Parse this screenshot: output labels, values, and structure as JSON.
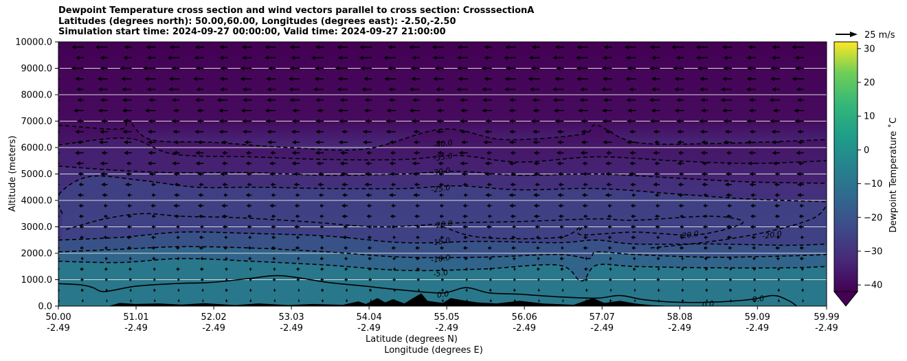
{
  "chart_data": {
    "type": "heatmap",
    "title_lines": [
      "Dewpoint Temperature cross section and wind vectors parallel to cross section: CrosssectionA",
      "Latitudes (degrees north): 50.00,60.00, Longitudes (degrees east): -2.50,-2.50",
      "Simulation start time: 2024-09-27 00:00:00, Valid time: 2024-09-27 21:00:00"
    ],
    "xlabel": "Latitude (degrees N)",
    "xlabel2": "Longitude (degrees E)",
    "ylabel": "Altitude (meters)",
    "xlim": [
      50.0,
      59.99
    ],
    "ylim": [
      0,
      10000
    ],
    "x_ticks": [
      {
        "lat": "50.00",
        "lon": "-2.49",
        "value": 50.0
      },
      {
        "lat": "51.01",
        "lon": "-2.49",
        "value": 51.01
      },
      {
        "lat": "52.02",
        "lon": "-2.49",
        "value": 52.02
      },
      {
        "lat": "53.03",
        "lon": "-2.49",
        "value": 53.03
      },
      {
        "lat": "54.04",
        "lon": "-2.49",
        "value": 54.04
      },
      {
        "lat": "55.05",
        "lon": "-2.49",
        "value": 55.05
      },
      {
        "lat": "56.06",
        "lon": "-2.49",
        "value": 56.06
      },
      {
        "lat": "57.07",
        "lon": "-2.49",
        "value": 57.07
      },
      {
        "lat": "58.08",
        "lon": "-2.49",
        "value": 58.08
      },
      {
        "lat": "59.09",
        "lon": "-2.49",
        "value": 59.09
      },
      {
        "lat": "59.99",
        "lon": "-2.49",
        "value": 59.99
      }
    ],
    "y_ticks": [
      {
        "label": "0.0",
        "value": 0
      },
      {
        "label": "1000.0",
        "value": 1000
      },
      {
        "label": "2000.0",
        "value": 2000
      },
      {
        "label": "3000.0",
        "value": 3000
      },
      {
        "label": "4000.0",
        "value": 4000
      },
      {
        "label": "5000.0",
        "value": 5000
      },
      {
        "label": "6000.0",
        "value": 6000
      },
      {
        "label": "7000.0",
        "value": 7000
      },
      {
        "label": "8000.0",
        "value": 8000
      },
      {
        "label": "9000.0",
        "value": 9000
      },
      {
        "label": "10000.0",
        "value": 10000
      }
    ],
    "grid": "horizontal",
    "colorbar": {
      "label": "Dewpoint Temperature ˚C",
      "min": -42,
      "max": 32,
      "extend": "min",
      "ticks": [
        {
          "label": "30",
          "value": 30
        },
        {
          "label": "20",
          "value": 20
        },
        {
          "label": "10",
          "value": 10
        },
        {
          "label": "0",
          "value": 0
        },
        {
          "label": "−10",
          "value": -10
        },
        {
          "label": "−20",
          "value": -20
        },
        {
          "label": "−30",
          "value": -30
        },
        {
          "label": "−40",
          "value": -40
        }
      ],
      "colormap": "viridis"
    },
    "contours": [
      {
        "level": -40,
        "label": "-40.0",
        "style": "dashed",
        "points": [
          [
            50.0,
            6850
          ],
          [
            50.8,
            6700
          ],
          [
            50.9,
            7050
          ],
          [
            51.2,
            6300
          ],
          [
            52.0,
            6200
          ],
          [
            53.0,
            6000
          ],
          [
            54.0,
            5950
          ],
          [
            55.0,
            6700
          ],
          [
            55.8,
            6300
          ],
          [
            56.8,
            6500
          ],
          [
            57.0,
            6850
          ],
          [
            57.5,
            6200
          ],
          [
            58.5,
            6150
          ],
          [
            59.99,
            6300
          ]
        ],
        "labels": [
          {
            "x": 55.0,
            "y": 6150
          }
        ]
      },
      {
        "level": -35,
        "label": "-35.0",
        "style": "dashed",
        "points": [
          [
            50.0,
            6100
          ],
          [
            50.9,
            6350
          ],
          [
            51.5,
            5750
          ],
          [
            52.5,
            5650
          ],
          [
            53.5,
            5550
          ],
          [
            54.5,
            5550
          ],
          [
            55.2,
            5700
          ],
          [
            56.0,
            5450
          ],
          [
            57.0,
            5650
          ],
          [
            58.0,
            5500
          ],
          [
            59.0,
            5400
          ],
          [
            59.99,
            5500
          ]
        ],
        "labels": [
          {
            "x": 55.0,
            "y": 5650
          }
        ]
      },
      {
        "level": -30,
        "label": "-30.0",
        "style": "dashed",
        "points": [
          [
            50.0,
            5300
          ],
          [
            50.7,
            5150
          ],
          [
            51.5,
            5050
          ],
          [
            52.5,
            5050
          ],
          [
            53.5,
            4950
          ],
          [
            54.5,
            5000
          ],
          [
            55.2,
            5100
          ],
          [
            56.0,
            4950
          ],
          [
            57.0,
            5000
          ],
          [
            58.0,
            4850
          ],
          [
            59.0,
            4700
          ],
          [
            59.99,
            4650
          ]
        ],
        "labels": [
          {
            "x": 54.97,
            "y": 5100
          }
        ]
      },
      {
        "level": -25,
        "label": "-25.0",
        "style": "dashed",
        "points": [
          [
            50.05,
            3500
          ],
          [
            50.0,
            4200
          ],
          [
            50.4,
            4900
          ],
          [
            51.1,
            4750
          ],
          [
            51.8,
            4500
          ],
          [
            52.6,
            4500
          ],
          [
            53.5,
            4450
          ],
          [
            54.5,
            4450
          ],
          [
            55.2,
            4550
          ],
          [
            56.0,
            4400
          ],
          [
            57.0,
            4450
          ],
          [
            58.0,
            4250
          ],
          [
            59.0,
            4050
          ],
          [
            59.99,
            3950
          ]
        ],
        "labels": [
          {
            "x": 54.97,
            "y": 4450
          }
        ]
      },
      {
        "level": -20,
        "label": "-20.0",
        "style": "dashed",
        "points": [
          [
            50.1,
            2900
          ],
          [
            50.6,
            3300
          ],
          [
            51.1,
            3500
          ],
          [
            51.6,
            3400
          ],
          [
            52.3,
            3350
          ],
          [
            53.2,
            3200
          ],
          [
            54.2,
            3000
          ],
          [
            55.2,
            3150
          ],
          [
            56.0,
            3200
          ],
          [
            57.0,
            3300
          ],
          [
            57.5,
            3250
          ],
          [
            58.5,
            3400
          ],
          [
            58.9,
            3150
          ],
          [
            58.3,
            2700
          ],
          [
            57.5,
            2800
          ],
          [
            56.8,
            2700
          ],
          [
            56.8,
            3000
          ],
          [
            56.5,
            2600
          ],
          [
            55.5,
            2600
          ],
          [
            55.0,
            3000
          ]
        ],
        "labels": [
          {
            "x": 55.0,
            "y": 3100
          },
          {
            "x": 58.2,
            "y": 2700
          }
        ]
      },
      {
        "level": -20,
        "label": "-20.0",
        "style": "dashed",
        "points": [
          [
            57.7,
            2200
          ],
          [
            58.5,
            2450
          ],
          [
            59.2,
            2800
          ],
          [
            59.8,
            3300
          ],
          [
            59.99,
            3800
          ]
        ],
        "labels": [
          {
            "x": 59.28,
            "y": 2700
          }
        ]
      },
      {
        "level": -15,
        "label": "-15.0",
        "style": "dashed",
        "points": [
          [
            50.0,
            2500
          ],
          [
            50.8,
            2600
          ],
          [
            51.6,
            2800
          ],
          [
            52.5,
            2750
          ],
          [
            53.5,
            2650
          ],
          [
            54.5,
            2400
          ],
          [
            55.5,
            2450
          ],
          [
            56.5,
            2400
          ],
          [
            57.0,
            2500
          ],
          [
            57.5,
            2350
          ],
          [
            58.5,
            2350
          ],
          [
            59.5,
            2300
          ],
          [
            59.99,
            2350
          ]
        ],
        "labels": [
          {
            "x": 54.97,
            "y": 2450
          }
        ]
      },
      {
        "level": -10,
        "label": "-10.0",
        "style": "dashed",
        "points": [
          [
            50.0,
            2050
          ],
          [
            50.8,
            2150
          ],
          [
            51.6,
            2250
          ],
          [
            52.5,
            2200
          ],
          [
            53.5,
            2050
          ],
          [
            54.5,
            1850
          ],
          [
            55.5,
            1850
          ],
          [
            56.5,
            1950
          ],
          [
            56.9,
            1800
          ],
          [
            57.0,
            2050
          ],
          [
            57.5,
            1950
          ],
          [
            58.5,
            1850
          ],
          [
            59.5,
            1900
          ],
          [
            59.99,
            1950
          ]
        ],
        "labels": [
          {
            "x": 54.97,
            "y": 1800
          }
        ]
      },
      {
        "level": -5,
        "label": "-5.0",
        "style": "dashed",
        "points": [
          [
            50.0,
            1700
          ],
          [
            50.8,
            1650
          ],
          [
            51.6,
            1800
          ],
          [
            52.5,
            1700
          ],
          [
            53.5,
            1550
          ],
          [
            54.5,
            1350
          ],
          [
            55.5,
            1400
          ],
          [
            56.5,
            1550
          ],
          [
            56.8,
            950
          ],
          [
            57.0,
            1550
          ],
          [
            57.5,
            1500
          ],
          [
            58.5,
            1450
          ],
          [
            59.5,
            1450
          ],
          [
            59.99,
            1500
          ]
        ],
        "labels": [
          {
            "x": 54.97,
            "y": 1250
          }
        ]
      },
      {
        "level": 0,
        "label": "0.0",
        "style": "solid",
        "points": [
          [
            50.0,
            850
          ],
          [
            50.3,
            800
          ],
          [
            50.45,
            700
          ],
          [
            50.6,
            550
          ],
          [
            51.0,
            750
          ],
          [
            51.5,
            850
          ],
          [
            52.0,
            900
          ],
          [
            52.5,
            1050
          ],
          [
            52.9,
            1150
          ],
          [
            53.5,
            900
          ],
          [
            54.0,
            750
          ],
          [
            54.5,
            600
          ],
          [
            55.0,
            500
          ],
          [
            55.3,
            700
          ],
          [
            55.6,
            500
          ],
          [
            56.0,
            450
          ],
          [
            56.5,
            350
          ],
          [
            57.0,
            300
          ],
          [
            57.3,
            400
          ],
          [
            57.6,
            250
          ],
          [
            58.0,
            150
          ],
          [
            58.5,
            150
          ],
          [
            59.0,
            250
          ],
          [
            59.3,
            400
          ],
          [
            59.5,
            200
          ],
          [
            59.6,
            0
          ]
        ],
        "labels": [
          {
            "x": 55.0,
            "y": 450
          },
          {
            "x": 58.45,
            "y": 80
          },
          {
            "x": 59.1,
            "y": 280
          }
        ]
      }
    ],
    "wind_vector_scale": {
      "label": "25 m/s",
      "value": 25
    },
    "wind_vectors": {
      "direction": "toward lower latitude (left)",
      "speed_range_ms": [
        2,
        12
      ]
    },
    "terrain": [
      [
        50.0,
        0
      ],
      [
        50.65,
        0
      ],
      [
        50.8,
        120
      ],
      [
        51.0,
        80
      ],
      [
        51.3,
        100
      ],
      [
        51.6,
        60
      ],
      [
        51.9,
        110
      ],
      [
        52.3,
        40
      ],
      [
        52.6,
        100
      ],
      [
        53.0,
        40
      ],
      [
        53.3,
        80
      ],
      [
        53.7,
        50
      ],
      [
        53.9,
        180
      ],
      [
        54.0,
        80
      ],
      [
        54.15,
        300
      ],
      [
        54.25,
        140
      ],
      [
        54.35,
        260
      ],
      [
        54.5,
        100
      ],
      [
        54.62,
        320
      ],
      [
        54.72,
        480
      ],
      [
        54.8,
        200
      ],
      [
        55.0,
        120
      ],
      [
        55.1,
        300
      ],
      [
        55.3,
        200
      ],
      [
        55.45,
        140
      ],
      [
        55.7,
        100
      ],
      [
        56.0,
        200
      ],
      [
        56.3,
        100
      ],
      [
        56.7,
        50
      ],
      [
        56.85,
        200
      ],
      [
        56.95,
        300
      ],
      [
        57.1,
        120
      ],
      [
        57.3,
        200
      ],
      [
        57.5,
        100
      ],
      [
        57.7,
        40
      ],
      [
        58.0,
        0
      ],
      [
        59.99,
        0
      ]
    ]
  }
}
